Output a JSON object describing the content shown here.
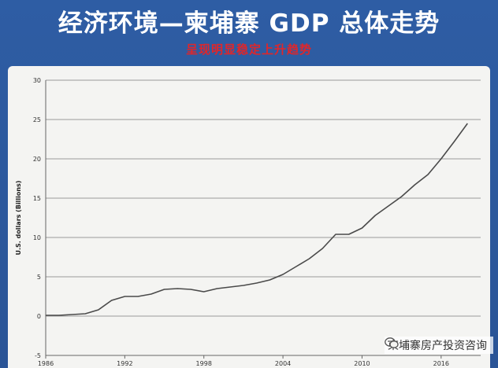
{
  "header": {
    "title": "经济环境—柬埔寨 GDP 总体走势",
    "subtitle": "呈现明显稳定上升趋势"
  },
  "watermark": {
    "text": "柬埔寨房产投资咨询",
    "icon": "wechat-icon"
  },
  "colors": {
    "background": "#2c5a9e",
    "title": "#ffffff",
    "subtitle": "#e0262a",
    "line": "#4a4a4a",
    "grid": "#9a9a9a"
  },
  "chart_data": {
    "type": "line",
    "title": "",
    "xlabel": "",
    "ylabel": "U.S. dollars (Billions)",
    "xlim": [
      1986,
      2019
    ],
    "ylim": [
      -5,
      30
    ],
    "x_ticks": [
      1986,
      1992,
      1998,
      2004,
      2010,
      2016
    ],
    "y_ticks": [
      -5,
      0,
      5,
      10,
      15,
      20,
      25,
      30
    ],
    "grid": true,
    "legend": "none",
    "series": [
      {
        "x": [
          1986,
          1987,
          1988,
          1989,
          1990,
          1991,
          1992,
          1993,
          1994,
          1995,
          1996,
          1997,
          1998,
          1999,
          2000,
          2001,
          2002,
          2003,
          2004,
          2005,
          2006,
          2007,
          2008,
          2009,
          2010,
          2011,
          2012,
          2013,
          2014,
          2015,
          2016,
          2017,
          2018
        ],
        "y": [
          0.1,
          0.1,
          0.2,
          0.3,
          0.8,
          2.0,
          2.5,
          2.5,
          2.8,
          3.4,
          3.5,
          3.4,
          3.1,
          3.5,
          3.7,
          3.9,
          4.2,
          4.6,
          5.3,
          6.3,
          7.3,
          8.6,
          10.4,
          10.4,
          11.2,
          12.8,
          14.0,
          15.2,
          16.7,
          18.0,
          20.0,
          22.2,
          24.5
        ]
      }
    ]
  }
}
